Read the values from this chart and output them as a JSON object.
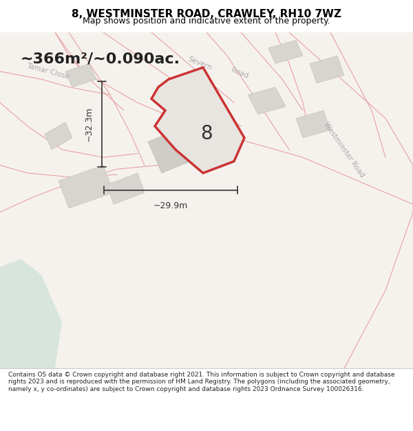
{
  "title": "8, WESTMINSTER ROAD, CRAWLEY, RH10 7WZ",
  "subtitle": "Map shows position and indicative extent of the property.",
  "area_text": "~366m²/~0.090ac.",
  "number_label": "8",
  "dim_width": "~29.9m",
  "dim_height": "~32.3m",
  "footer": "Contains OS data © Crown copyright and database right 2021. This information is subject to Crown copyright and database rights 2023 and is reproduced with the permission of HM Land Registry. The polygons (including the associated geometry, namely x, y co-ordinates) are subject to Crown copyright and database rights 2023 Ordnance Survey 100026316.",
  "bg_color": "#f0ede8",
  "road_color": "#e8a0a0",
  "road_outline_color": "#d46060",
  "plot_fill": "#e8e4e0",
  "plot_outline": "#cc3333",
  "plot_lw": 2.5,
  "map_bg": "#f5f2ee",
  "street_label_color": "#b0b0b0",
  "dim_color": "#333333",
  "water_color": "#c8ddd0"
}
